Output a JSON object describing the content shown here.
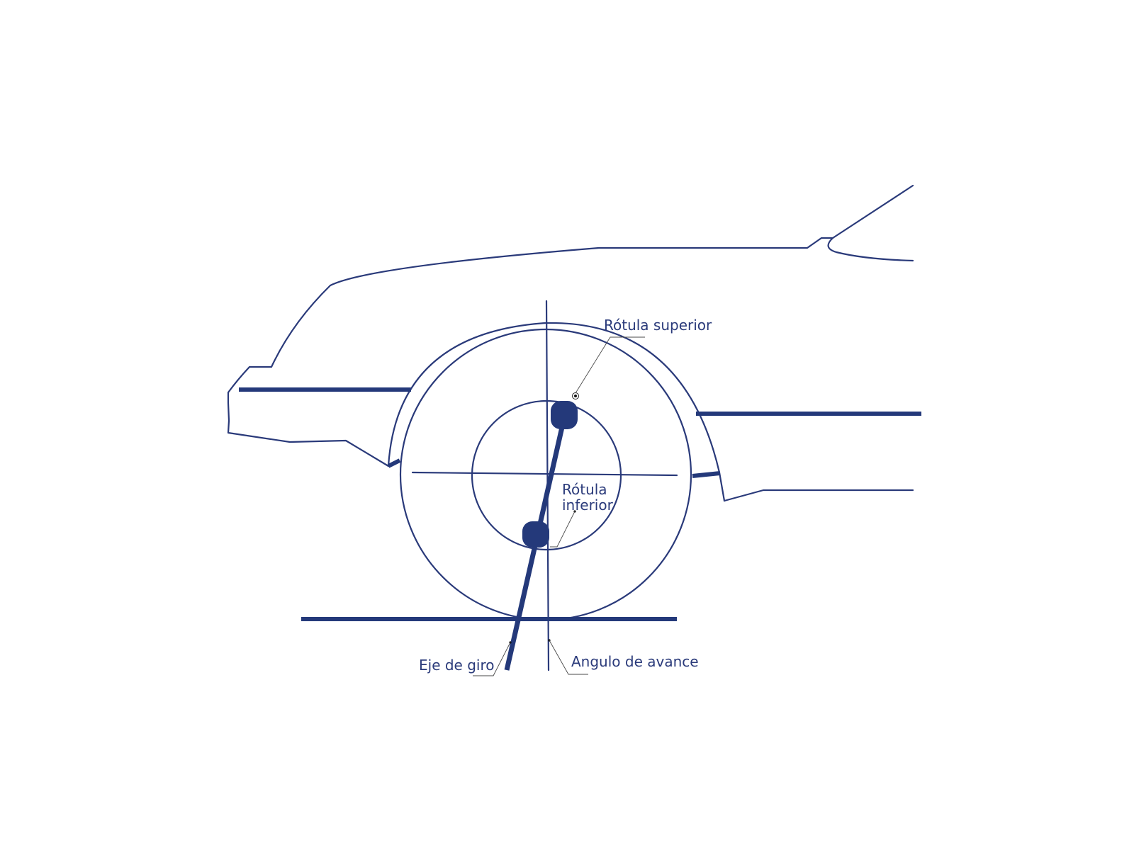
{
  "diagram": {
    "accent_color": "#24397a",
    "labels": {
      "upper_ball_joint": "Rótula superior",
      "lower_ball_joint_line1": "Rótula",
      "lower_ball_joint_line2": "inferior",
      "steering_axis": "Eje de giro",
      "caster_angle": "Angulo de avance"
    }
  }
}
